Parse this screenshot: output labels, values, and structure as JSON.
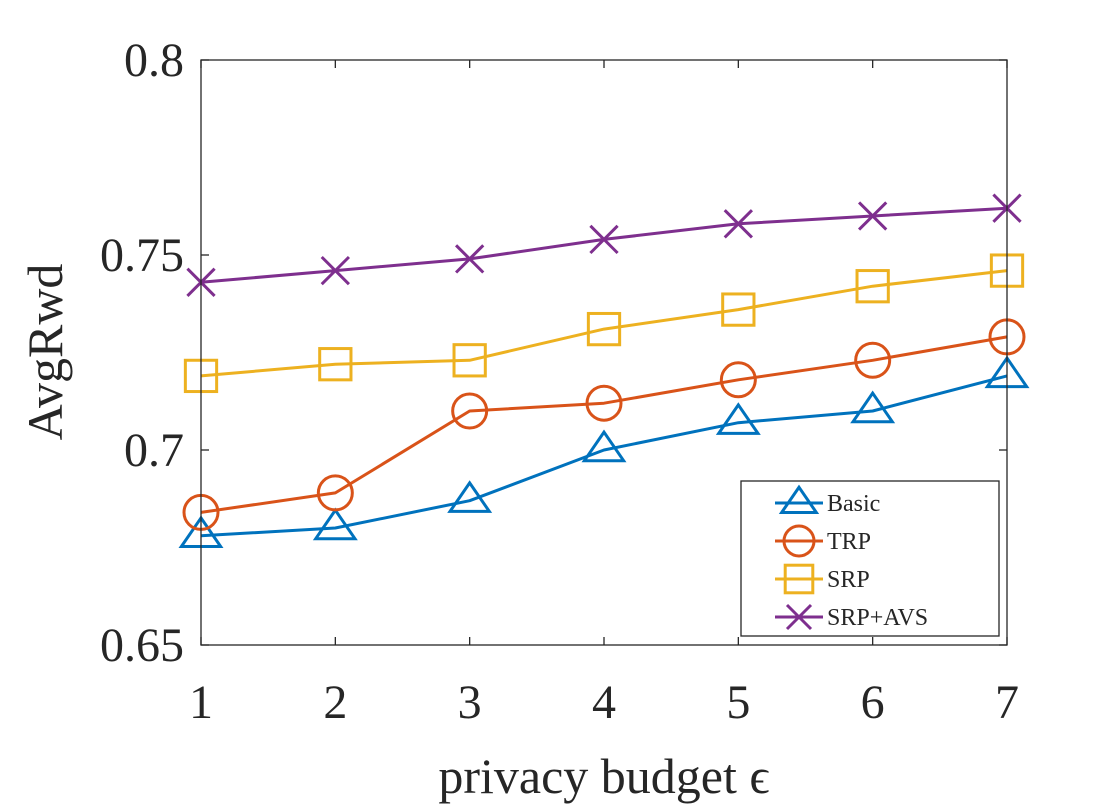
{
  "chart_data": {
    "type": "line",
    "xlabel": "privacy budget ϵ",
    "ylabel": "AvgRwd",
    "xlim": [
      1,
      7
    ],
    "ylim": [
      0.65,
      0.8
    ],
    "x_ticks": [
      1,
      2,
      3,
      4,
      5,
      6,
      7
    ],
    "x_tick_labels": [
      "1",
      "2",
      "3",
      "4",
      "5",
      "6",
      "7"
    ],
    "y_ticks": [
      0.65,
      0.7,
      0.75,
      0.8
    ],
    "y_tick_labels": [
      "0.65",
      "0.7",
      "0.75",
      "0.8"
    ],
    "grid": false,
    "legend_position": "bottom-right",
    "x": [
      1,
      2,
      3,
      4,
      5,
      6,
      7
    ],
    "series": [
      {
        "name": "Basic",
        "color": "#0072BD",
        "marker": "triangle",
        "values": [
          0.678,
          0.68,
          0.687,
          0.7,
          0.707,
          0.71,
          0.719
        ]
      },
      {
        "name": "TRP",
        "color": "#D95319",
        "marker": "circle",
        "values": [
          0.684,
          0.689,
          0.71,
          0.712,
          0.718,
          0.723,
          0.729
        ]
      },
      {
        "name": "SRP",
        "color": "#EDB120",
        "marker": "square",
        "values": [
          0.719,
          0.722,
          0.723,
          0.731,
          0.736,
          0.742,
          0.746
        ]
      },
      {
        "name": "SRP+AVS",
        "color": "#7E2F8E",
        "marker": "x",
        "values": [
          0.743,
          0.746,
          0.749,
          0.754,
          0.758,
          0.76,
          0.762
        ]
      }
    ]
  }
}
